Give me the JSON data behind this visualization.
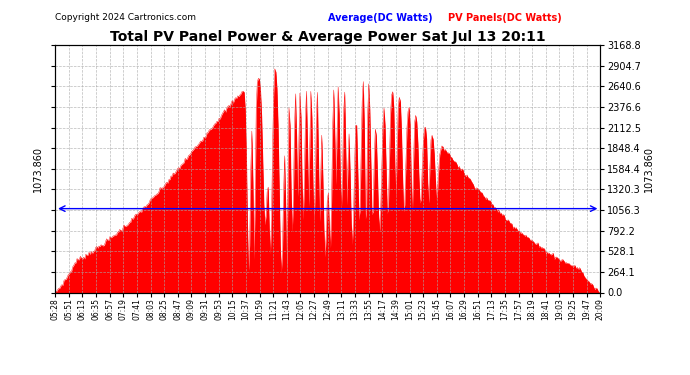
{
  "title": "Total PV Panel Power & Average Power Sat Jul 13 20:11",
  "copyright": "Copyright 2024 Cartronics.com",
  "legend_average": "Average(DC Watts)",
  "legend_pv": "PV Panels(DC Watts)",
  "average_value": 1073.86,
  "ymax": 3168.8,
  "ymin": 0.0,
  "yticks": [
    0.0,
    264.1,
    528.1,
    792.2,
    1056.3,
    1320.3,
    1584.4,
    1848.4,
    2112.5,
    2376.6,
    2640.6,
    2904.7,
    3168.8
  ],
  "background_color": "#ffffff",
  "fill_color": "#ff0000",
  "line_color": "#ff0000",
  "avg_line_color": "#0000ff",
  "grid_color": "#aaaaaa",
  "title_color": "#000000",
  "copyright_color": "#000000",
  "legend_avg_color": "#0000ff",
  "legend_pv_color": "#ff0000",
  "xtick_labels": [
    "05:28",
    "05:51",
    "06:13",
    "06:35",
    "06:57",
    "07:19",
    "07:41",
    "08:03",
    "08:25",
    "08:47",
    "09:09",
    "09:31",
    "09:53",
    "10:15",
    "10:37",
    "10:59",
    "11:21",
    "11:43",
    "12:05",
    "12:27",
    "12:49",
    "13:11",
    "13:33",
    "13:55",
    "14:17",
    "14:39",
    "15:01",
    "15:23",
    "15:45",
    "16:07",
    "16:29",
    "16:51",
    "17:13",
    "17:35",
    "17:57",
    "18:19",
    "18:41",
    "19:03",
    "19:25",
    "19:47",
    "20:09"
  ]
}
